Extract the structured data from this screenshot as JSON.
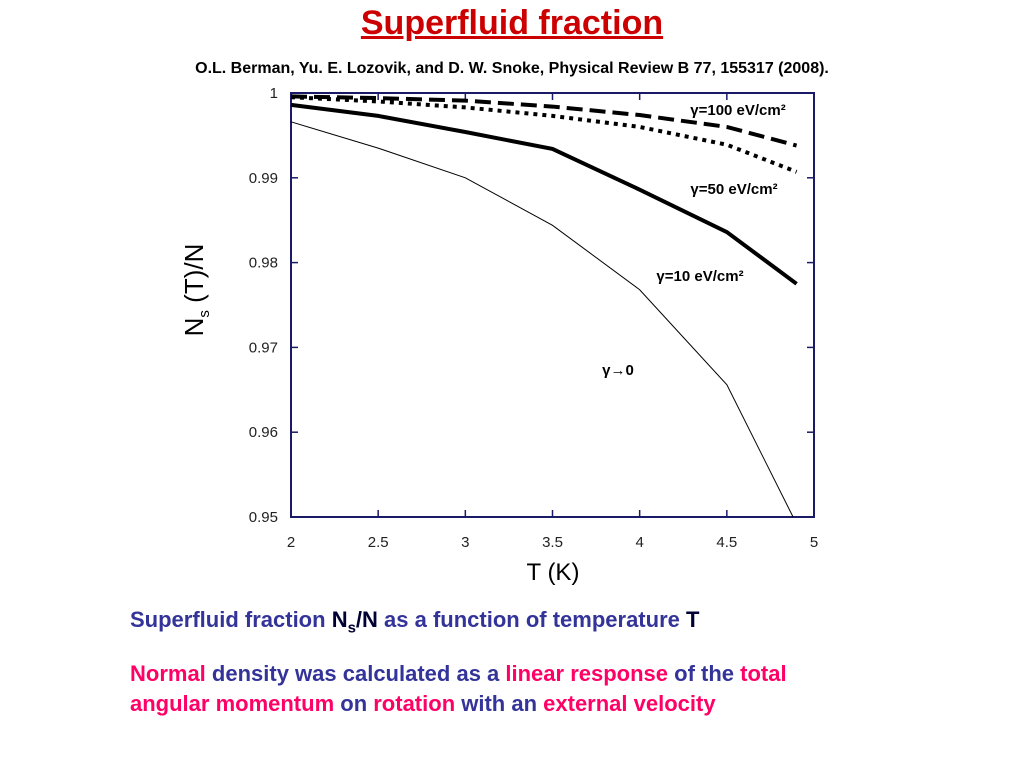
{
  "slide": {
    "title": "Superfluid fraction",
    "citation": "O.L. Berman, Yu. E. Lozovik, and D. W. Snoke, Physical Review B 77, 155317 (2008).",
    "caption_lines": [
      [
        {
          "text": "Superfluid fraction ",
          "color": "#333399"
        },
        {
          "text": "N",
          "color": "#000033"
        },
        {
          "text": "s",
          "color": "#000033",
          "sub": true
        },
        {
          "text": "/N",
          "color": "#000033"
        },
        {
          "text": " as a function of temperature ",
          "color": "#333399"
        },
        {
          "text": "T",
          "color": "#000033"
        }
      ],
      [
        {
          "text": "Normal",
          "color": "#ff0066"
        },
        {
          "text": " density was calculated as a ",
          "color": "#333399"
        },
        {
          "text": "linear response",
          "color": "#ff0066"
        },
        {
          "text": " of the ",
          "color": "#333399"
        },
        {
          "text": "total",
          "color": "#ff0066"
        }
      ],
      [
        {
          "text": "angular momentum",
          "color": "#ff0066"
        },
        {
          "text": " on ",
          "color": "#333399"
        },
        {
          "text": "rotation",
          "color": "#ff0066"
        },
        {
          "text": " with an ",
          "color": "#333399"
        },
        {
          "text": "external velocity",
          "color": "#ff0066"
        }
      ]
    ]
  },
  "chart_data": {
    "type": "line",
    "xlabel": "T (K)",
    "ylabel": [
      "N",
      "s",
      " (T)/N"
    ],
    "xlim": [
      2,
      5
    ],
    "ylim": [
      0.95,
      1
    ],
    "xticks": [
      2,
      2.5,
      3,
      3.5,
      4,
      4.5,
      5
    ],
    "yticks": [
      0.95,
      0.96,
      0.97,
      0.98,
      0.99,
      1
    ],
    "frame_color": "#1a1a66",
    "series": [
      {
        "name": "γ=100 eV/cm²",
        "color": "#000000",
        "style": "dashed",
        "x": [
          2,
          2.5,
          3,
          3.5,
          4,
          4.5,
          4.9
        ],
        "values": [
          0.9996,
          0.9994,
          0.9991,
          0.9984,
          0.9974,
          0.996,
          0.9938
        ]
      },
      {
        "name": "γ=50 eV/cm²",
        "color": "#000000",
        "style": "dotted",
        "x": [
          2,
          2.5,
          3,
          3.5,
          4,
          4.5,
          4.9
        ],
        "values": [
          0.9995,
          0.999,
          0.9983,
          0.9973,
          0.996,
          0.9939,
          0.9907
        ]
      },
      {
        "name": "γ=10 eV/cm²",
        "color": "#000000",
        "style": "thick",
        "x": [
          2,
          2.5,
          3,
          3.5,
          4,
          4.5,
          4.9
        ],
        "values": [
          0.9986,
          0.9973,
          0.9954,
          0.9934,
          0.9886,
          0.9836,
          0.9775
        ]
      },
      {
        "name": "γ→0",
        "color": "#000000",
        "style": "thin",
        "x": [
          2,
          2.5,
          3,
          3.5,
          4,
          4.5,
          4.88
        ],
        "values": [
          0.9966,
          0.9935,
          0.99,
          0.9844,
          0.9768,
          0.9656,
          0.95
        ]
      }
    ]
  }
}
